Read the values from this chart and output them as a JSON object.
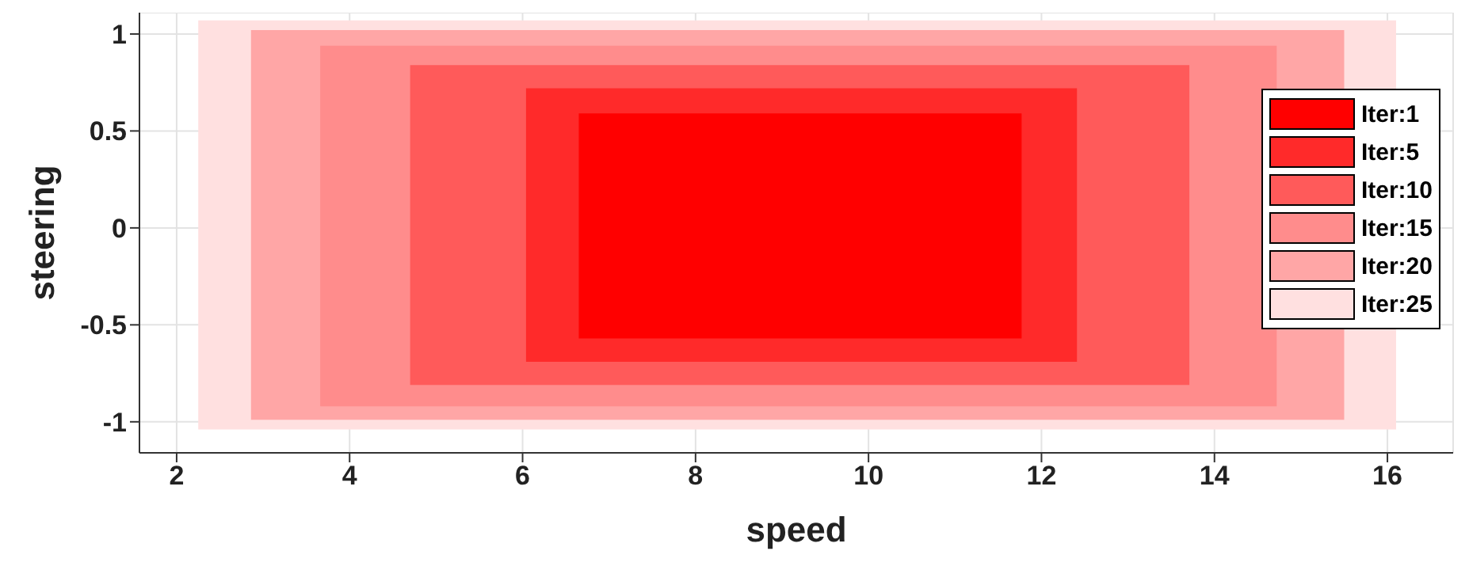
{
  "chart_data": {
    "type": "area",
    "xlabel": "speed",
    "ylabel": "steering",
    "xlim": [
      1.57,
      16.76
    ],
    "ylim": [
      -1.16,
      1.11
    ],
    "xticks": [
      2,
      4,
      6,
      8,
      10,
      12,
      14,
      16
    ],
    "yticks": [
      -1,
      -0.5,
      0,
      0.5,
      1
    ],
    "grid": true,
    "legend": "right",
    "series": [
      {
        "name": "Iter:1",
        "color": "#ff0000",
        "x": [
          6.65,
          11.77
        ],
        "values": [
          null,
          null
        ],
        "lower": [
          -0.57,
          -0.57
        ],
        "upper": [
          0.59,
          0.59
        ]
      },
      {
        "name": "Iter:5",
        "color": "#ff2a2a",
        "x": [
          6.04,
          12.41
        ],
        "values": [
          null,
          null
        ],
        "lower": [
          -0.69,
          -0.69
        ],
        "upper": [
          0.72,
          0.72
        ]
      },
      {
        "name": "Iter:10",
        "color": "#ff5a5a",
        "x": [
          4.7,
          13.71
        ],
        "values": [
          null,
          null
        ],
        "lower": [
          -0.81,
          -0.81
        ],
        "upper": [
          0.84,
          0.84
        ]
      },
      {
        "name": "Iter:15",
        "color": "#ff8c8c",
        "x": [
          3.66,
          14.72
        ],
        "values": [
          null,
          null
        ],
        "lower": [
          -0.92,
          -0.92
        ],
        "upper": [
          0.94,
          0.94
        ]
      },
      {
        "name": "Iter:20",
        "color": "#ffa6a6",
        "x": [
          2.86,
          15.5
        ],
        "values": [
          null,
          null
        ],
        "lower": [
          -0.99,
          -0.99
        ],
        "upper": [
          1.02,
          1.02
        ]
      },
      {
        "name": "Iter:25",
        "color": "#ffe0e0",
        "x": [
          2.25,
          16.1
        ],
        "values": [
          null,
          null
        ],
        "lower": [
          -1.04,
          -1.04
        ],
        "upper": [
          1.07,
          1.07
        ]
      }
    ]
  }
}
